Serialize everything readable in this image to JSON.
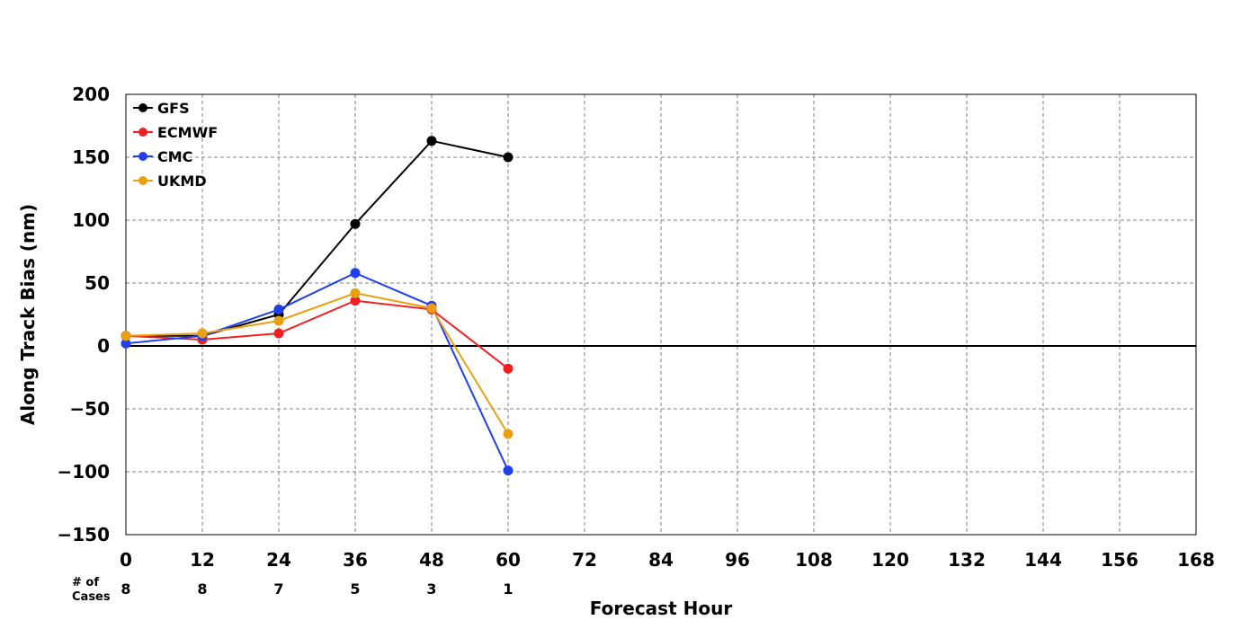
{
  "chart_data": {
    "type": "line",
    "xlabel": "Forecast Hour",
    "ylabel": "Along Track Bias (nm)",
    "xlim": [
      0,
      168
    ],
    "ylim": [
      -150,
      200
    ],
    "x_ticks": [
      "0",
      "12",
      "24",
      "36",
      "48",
      "60",
      "72",
      "84",
      "96",
      "108",
      "120",
      "132",
      "144",
      "156",
      "168"
    ],
    "y_ticks": [
      "200",
      "150",
      "100",
      "50",
      "0",
      "−50",
      "−100",
      "−150"
    ],
    "grid": true,
    "legend_position": "top-left",
    "zero_line": true,
    "series": [
      {
        "name": "GFS",
        "color": "#000000",
        "x": [
          0,
          12,
          24,
          36,
          48,
          60
        ],
        "y": [
          8,
          8,
          25,
          97,
          163,
          150
        ]
      },
      {
        "name": "ECMWF",
        "color": "#f02020",
        "x": [
          0,
          12,
          24,
          36,
          48,
          60
        ],
        "y": [
          8,
          5,
          10,
          36,
          29,
          -18
        ]
      },
      {
        "name": "CMC",
        "color": "#2040f0",
        "x": [
          0,
          12,
          24,
          36,
          48,
          60
        ],
        "y": [
          2,
          8,
          29,
          58,
          32,
          -99
        ]
      },
      {
        "name": "UKMD",
        "color": "#e8a010",
        "x": [
          0,
          12,
          24,
          36,
          48,
          60
        ],
        "y": [
          8,
          10,
          20,
          42,
          30,
          -70
        ]
      }
    ],
    "cases": {
      "label_line1": "# of",
      "label_line2": "Cases",
      "values": [
        "8",
        "8",
        "7",
        "5",
        "3",
        "1"
      ]
    }
  }
}
